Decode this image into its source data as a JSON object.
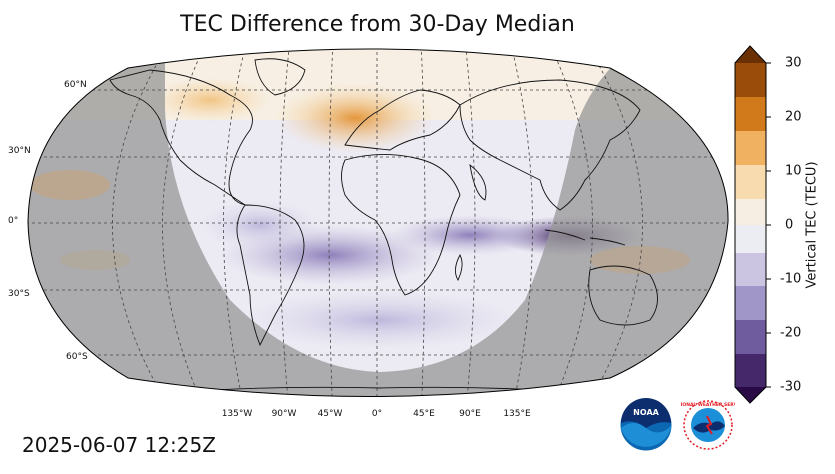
{
  "title": "TEC Difference from 30-Day Median",
  "timestamp": "2025-06-07 12:25Z",
  "colorbar": {
    "label": "Vertical TEC (TECU)",
    "ticks": [
      "30",
      "20",
      "10",
      "0",
      "-10",
      "-20",
      "-30"
    ],
    "min": -30,
    "max": 30,
    "colors": {
      "max": "#7a3a08",
      "high": "#e08b26",
      "mid_pos": "#f6d7a4",
      "zero": "#f4f4f4",
      "mid_neg": "#bdb5d9",
      "low": "#6a5a9a",
      "min": "#2e0e4e"
    }
  },
  "map": {
    "lat_labels": [
      "60°N",
      "30°N",
      "0°",
      "30°S",
      "60°S"
    ],
    "lon_labels": [
      "135°W",
      "90°W",
      "45°W",
      "0°",
      "45°E",
      "90°E",
      "135°E"
    ],
    "night_shade": "#9a9a9a",
    "ocean_base": "#eceaf3"
  },
  "logos": {
    "noaa_text": "NOAA",
    "nws_text": "NATIONAL WEATHER SERVICE"
  }
}
